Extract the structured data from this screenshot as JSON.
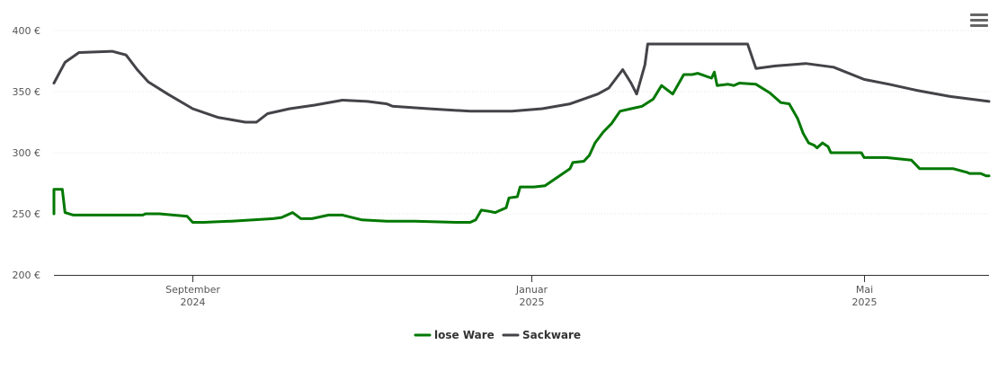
{
  "menu": {
    "icon": "hamburger-menu-icon"
  },
  "chart_data": {
    "type": "line",
    "y_axis": {
      "min": 200,
      "max": 400,
      "ticks": [
        {
          "value": 200,
          "label": "200 €"
        },
        {
          "value": 250,
          "label": "250 €"
        },
        {
          "value": 300,
          "label": "300 €"
        },
        {
          "value": 350,
          "label": "350 €"
        },
        {
          "value": 400,
          "label": "400 €"
        }
      ]
    },
    "x_axis": {
      "min": "2024-07-13",
      "max": "2025-06-15",
      "ticks": [
        {
          "date": "2024-09-01",
          "line1": "September",
          "line2": "2024"
        },
        {
          "date": "2025-01-01",
          "line1": "Januar",
          "line2": "2025"
        },
        {
          "date": "2025-05-01",
          "line1": "Mai",
          "line2": "2025"
        }
      ]
    },
    "grid": true,
    "legend_position": "bottom-center",
    "series": [
      {
        "name": "lose Ware",
        "color": "#007800",
        "points": [
          [
            "2024-07-13",
            250
          ],
          [
            "2024-07-13",
            270
          ],
          [
            "2024-07-16",
            270
          ],
          [
            "2024-07-17",
            251
          ],
          [
            "2024-07-20",
            249
          ],
          [
            "2024-08-14",
            249
          ],
          [
            "2024-08-15",
            250
          ],
          [
            "2024-08-20",
            250
          ],
          [
            "2024-08-30",
            248
          ],
          [
            "2024-09-01",
            243
          ],
          [
            "2024-09-05",
            243
          ],
          [
            "2024-09-15",
            244
          ],
          [
            "2024-09-30",
            246
          ],
          [
            "2024-10-03",
            247
          ],
          [
            "2024-10-07",
            251
          ],
          [
            "2024-10-10",
            246
          ],
          [
            "2024-10-14",
            246
          ],
          [
            "2024-10-20",
            249
          ],
          [
            "2024-10-25",
            249
          ],
          [
            "2024-11-01",
            245
          ],
          [
            "2024-11-10",
            244
          ],
          [
            "2024-11-20",
            244
          ],
          [
            "2024-12-05",
            243
          ],
          [
            "2024-12-10",
            243
          ],
          [
            "2024-12-12",
            245
          ],
          [
            "2024-12-14",
            253
          ],
          [
            "2024-12-17",
            252
          ],
          [
            "2024-12-19",
            251
          ],
          [
            "2024-12-21",
            253
          ],
          [
            "2024-12-23",
            255
          ],
          [
            "2024-12-24",
            263
          ],
          [
            "2024-12-27",
            264
          ],
          [
            "2024-12-28",
            272
          ],
          [
            "2025-01-02",
            272
          ],
          [
            "2025-01-06",
            273
          ],
          [
            "2025-01-15",
            287
          ],
          [
            "2025-01-16",
            292
          ],
          [
            "2025-01-20",
            293
          ],
          [
            "2025-01-22",
            298
          ],
          [
            "2025-01-24",
            308
          ],
          [
            "2025-01-27",
            317
          ],
          [
            "2025-01-30",
            324
          ],
          [
            "2025-02-02",
            334
          ],
          [
            "2025-02-06",
            336
          ],
          [
            "2025-02-10",
            338
          ],
          [
            "2025-02-14",
            344
          ],
          [
            "2025-02-17",
            355
          ],
          [
            "2025-02-21",
            348
          ],
          [
            "2025-02-25",
            364
          ],
          [
            "2025-02-28",
            364
          ],
          [
            "2025-03-02",
            365
          ],
          [
            "2025-03-07",
            361
          ],
          [
            "2025-03-08",
            366
          ],
          [
            "2025-03-09",
            355
          ],
          [
            "2025-03-13",
            356
          ],
          [
            "2025-03-15",
            355
          ],
          [
            "2025-03-17",
            357
          ],
          [
            "2025-03-23",
            356
          ],
          [
            "2025-03-28",
            349
          ],
          [
            "2025-04-01",
            341
          ],
          [
            "2025-04-04",
            340
          ],
          [
            "2025-04-07",
            328
          ],
          [
            "2025-04-09",
            316
          ],
          [
            "2025-04-11",
            308
          ],
          [
            "2025-04-13",
            306
          ],
          [
            "2025-04-14",
            304
          ],
          [
            "2025-04-16",
            308
          ],
          [
            "2025-04-18",
            305
          ],
          [
            "2025-04-19",
            300
          ],
          [
            "2025-04-30",
            300
          ],
          [
            "2025-05-01",
            296
          ],
          [
            "2025-05-08",
            296
          ],
          [
            "2025-05-09",
            296
          ],
          [
            "2025-05-18",
            294
          ],
          [
            "2025-05-21",
            287
          ],
          [
            "2025-05-31",
            287
          ],
          [
            "2025-06-02",
            287
          ],
          [
            "2025-06-07",
            284
          ],
          [
            "2025-06-08",
            283
          ],
          [
            "2025-06-12",
            283
          ],
          [
            "2025-06-14",
            281
          ],
          [
            "2025-06-15",
            281
          ]
        ]
      },
      {
        "name": "Sackware",
        "color": "#434348",
        "points": [
          [
            "2024-07-13",
            357
          ],
          [
            "2024-07-17",
            374
          ],
          [
            "2024-07-22",
            382
          ],
          [
            "2024-08-03",
            383
          ],
          [
            "2024-08-08",
            380
          ],
          [
            "2024-08-12",
            368
          ],
          [
            "2024-08-16",
            358
          ],
          [
            "2024-08-23",
            348
          ],
          [
            "2024-09-01",
            336
          ],
          [
            "2024-09-10",
            329
          ],
          [
            "2024-09-20",
            325
          ],
          [
            "2024-09-24",
            325
          ],
          [
            "2024-09-28",
            332
          ],
          [
            "2024-10-06",
            336
          ],
          [
            "2024-10-15",
            339
          ],
          [
            "2024-10-25",
            343
          ],
          [
            "2024-11-03",
            342
          ],
          [
            "2024-11-10",
            340
          ],
          [
            "2024-11-12",
            338
          ],
          [
            "2024-11-25",
            336
          ],
          [
            "2024-12-10",
            334
          ],
          [
            "2024-12-25",
            334
          ],
          [
            "2025-01-05",
            336
          ],
          [
            "2025-01-15",
            340
          ],
          [
            "2025-01-25",
            348
          ],
          [
            "2025-01-29",
            353
          ],
          [
            "2025-02-03",
            368
          ],
          [
            "2025-02-06",
            357
          ],
          [
            "2025-02-08",
            348
          ],
          [
            "2025-02-11",
            372
          ],
          [
            "2025-02-12",
            389
          ],
          [
            "2025-02-15",
            389
          ],
          [
            "2025-03-20",
            389
          ],
          [
            "2025-03-23",
            369
          ],
          [
            "2025-03-30",
            371
          ],
          [
            "2025-04-10",
            373
          ],
          [
            "2025-04-20",
            370
          ],
          [
            "2025-05-01",
            360
          ],
          [
            "2025-05-10",
            356
          ],
          [
            "2025-05-20",
            351
          ],
          [
            "2025-06-01",
            346
          ],
          [
            "2025-06-15",
            342
          ]
        ]
      }
    ]
  }
}
